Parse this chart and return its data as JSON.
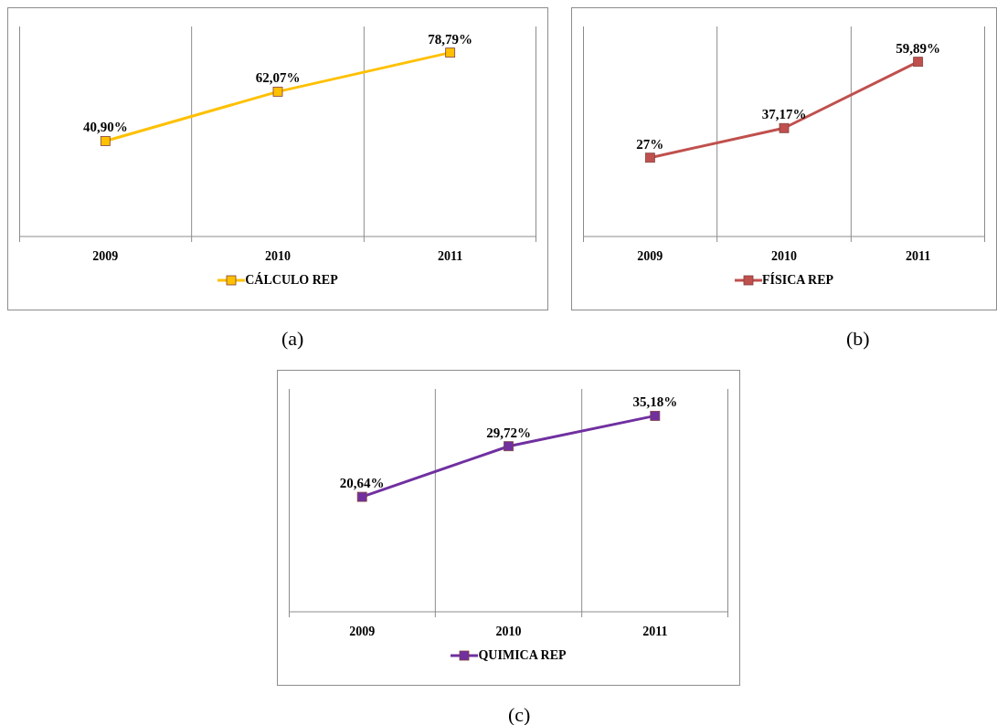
{
  "chart_data": [
    {
      "type": "line",
      "categories": [
        "2009",
        "2010",
        "2011"
      ],
      "series": [
        {
          "name": "CÁLCULO REP",
          "color": "#ffc000",
          "values": [
            40.9,
            62.07,
            78.79
          ],
          "value_labels": [
            "40,90%",
            "62,07%",
            "78,79%"
          ]
        }
      ],
      "ylim": [
        0,
        90
      ],
      "tick_labels": "x",
      "legend": "bottom",
      "marker": "square",
      "line_style": "solid",
      "annotations": [
        "(a)"
      ]
    },
    {
      "type": "line",
      "categories": [
        "2009",
        "2010",
        "2011"
      ],
      "series": [
        {
          "name": "FÍSICA REP",
          "color": "#c0504d",
          "values": [
            27,
            37.17,
            59.89
          ],
          "value_labels": [
            "27%",
            "37,17%",
            "59,89%"
          ]
        }
      ],
      "ylim": [
        0,
        72
      ],
      "tick_labels": "x",
      "legend": "bottom",
      "marker": "square",
      "line_style": "solid",
      "annotations": [
        "(b)"
      ]
    },
    {
      "type": "line",
      "categories": [
        "2009",
        "2010",
        "2011"
      ],
      "series": [
        {
          "name": "QUIMICA REP",
          "color": "#7030a0",
          "values": [
            20.64,
            29.72,
            35.18
          ],
          "value_labels": [
            "20,64%",
            "29,72%",
            "35,18%"
          ]
        }
      ],
      "ylim": [
        0,
        40
      ],
      "tick_labels": "x",
      "legend": "bottom",
      "marker": "square",
      "line_style": "solid",
      "annotations": [
        "(c)"
      ]
    }
  ]
}
